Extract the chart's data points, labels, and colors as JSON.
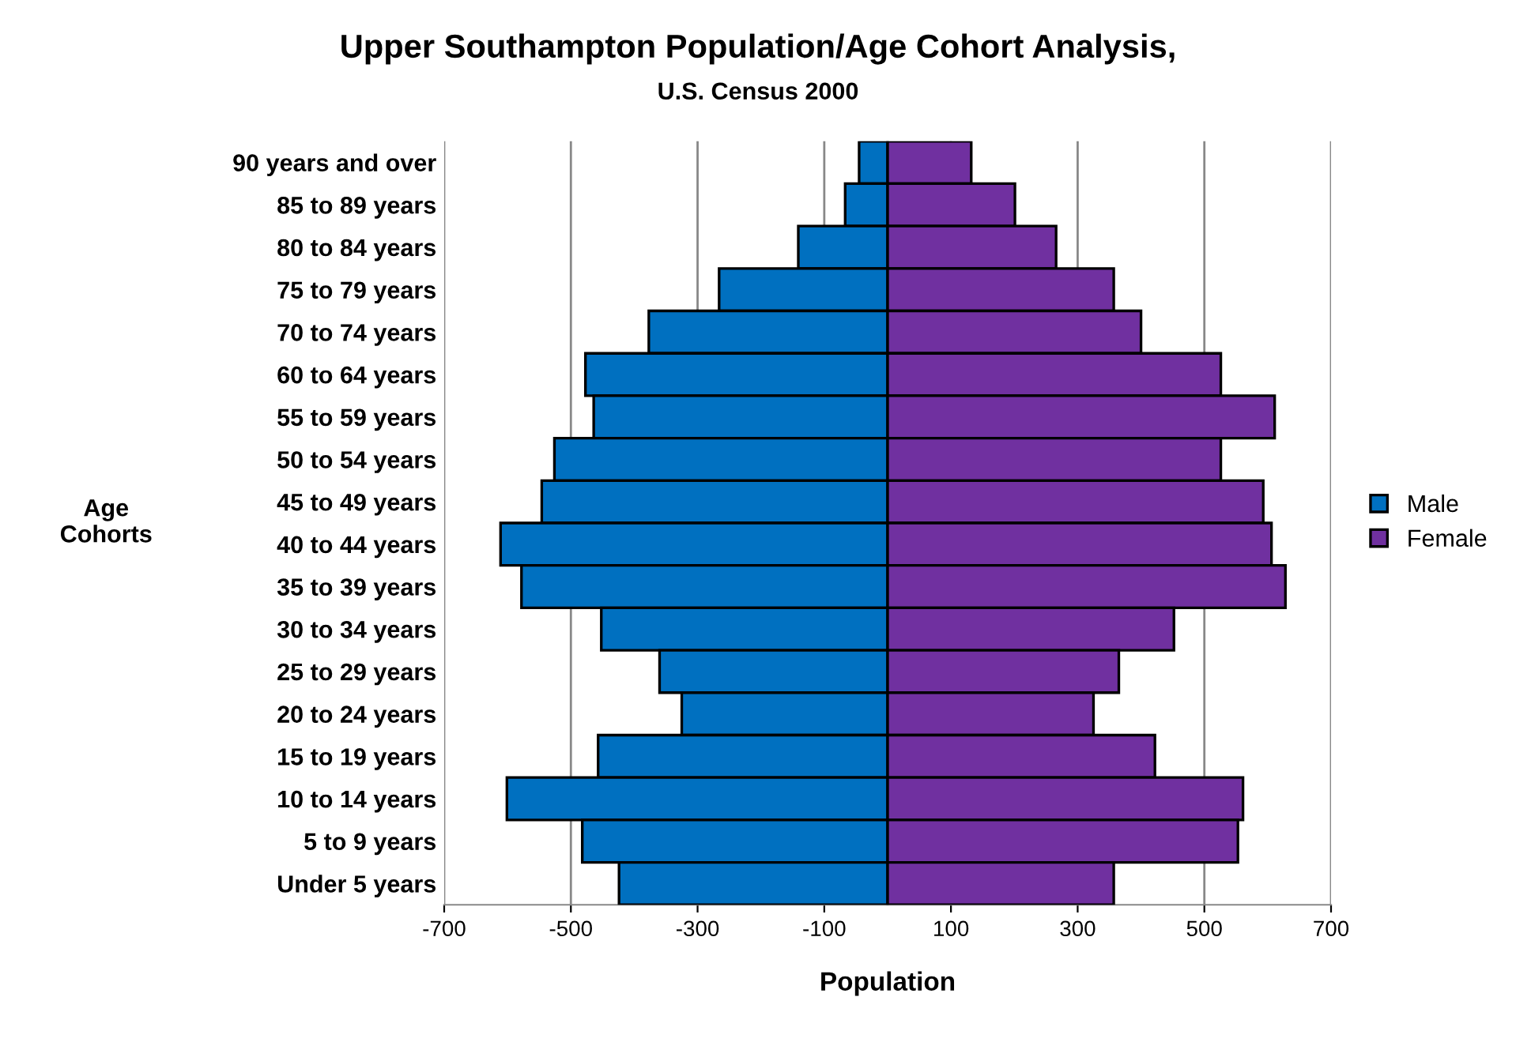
{
  "chart_data": {
    "type": "bar",
    "orientation": "horizontal",
    "stacked": true,
    "title": "Upper Southampton Population/Age Cohort Analysis,",
    "subtitle": "U.S. Census 2000",
    "xlabel": "Population",
    "ylabel": "Age\nCohorts",
    "categories": [
      "90 years and over",
      "85 to 89 years",
      "80 to 84 years",
      "75 to 79 years",
      "70 to 74 years",
      "60 to 64 years",
      "55 to 59 years",
      "50 to 54 years",
      "45 to 49 years",
      "40 to 44 years",
      "35 to 39 years",
      "30 to 34 years",
      "25 to 29 years",
      "20 to 24 years",
      "15 to 19 years",
      "10 to 14 years",
      "5 to 9 years",
      "Under 5 years"
    ],
    "series": [
      {
        "name": "Male",
        "color": "#0070c0",
        "values": [
          -45,
          -67,
          -141,
          -266,
          -377,
          -477,
          -464,
          -526,
          -546,
          -611,
          -578,
          -452,
          -360,
          -325,
          -457,
          -601,
          -482,
          -424
        ]
      },
      {
        "name": "Female",
        "color": "#7030a0",
        "values": [
          132,
          201,
          266,
          357,
          400,
          526,
          611,
          526,
          593,
          606,
          628,
          452,
          365,
          325,
          422,
          561,
          553,
          357
        ]
      }
    ],
    "xlim": [
      -700,
      700
    ],
    "xticks": [
      -700,
      -500,
      -300,
      -100,
      100,
      300,
      500,
      700
    ],
    "grid": "x",
    "legend": "right"
  }
}
